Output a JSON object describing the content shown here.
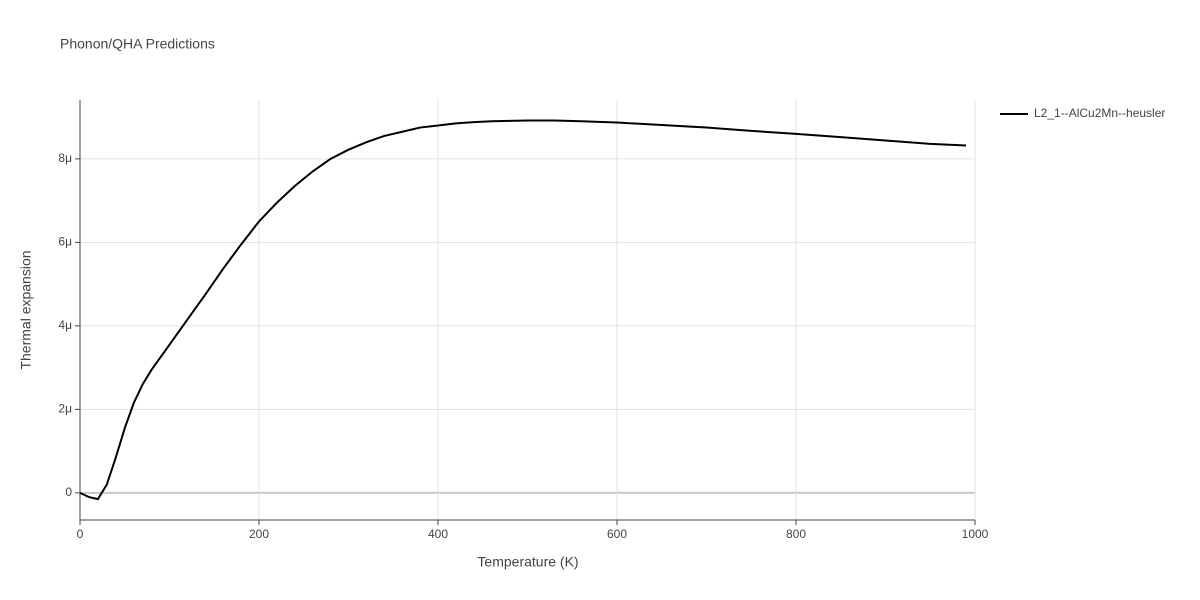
{
  "chart_data": {
    "type": "line",
    "title": "Phonon/QHA Predictions",
    "xlabel": "Temperature (K)",
    "ylabel": "Thermal expansion",
    "x": [
      0,
      10,
      20,
      30,
      40,
      50,
      60,
      70,
      80,
      100,
      120,
      140,
      160,
      180,
      200,
      220,
      240,
      260,
      280,
      300,
      320,
      340,
      360,
      380,
      400,
      420,
      440,
      460,
      480,
      500,
      530,
      560,
      600,
      650,
      700,
      750,
      800,
      850,
      900,
      950,
      990
    ],
    "series": [
      {
        "name": "L2_1--AlCu2Mn--heusler",
        "color": "#000000",
        "values": [
          0,
          -1e-07,
          -1.5e-07,
          2e-07,
          8.5e-07,
          1.55e-06,
          2.15e-06,
          2.6e-06,
          2.95e-06,
          3.55e-06,
          4.15e-06,
          4.75e-06,
          5.37e-06,
          5.95e-06,
          6.5e-06,
          6.95e-06,
          7.35e-06,
          7.7e-06,
          8e-06,
          8.22e-06,
          8.4e-06,
          8.55e-06,
          8.65e-06,
          8.75e-06,
          8.8e-06,
          8.85e-06,
          8.88e-06,
          8.9e-06,
          8.91e-06,
          8.92e-06,
          8.92e-06,
          8.9e-06,
          8.87e-06,
          8.81e-06,
          8.75e-06,
          8.67e-06,
          8.6e-06,
          8.52e-06,
          8.44e-06,
          8.36e-06,
          8.32e-06
        ]
      }
    ],
    "xlim": [
      0,
      1000
    ],
    "xticks": [
      0,
      200,
      400,
      600,
      800,
      1000
    ],
    "ylim": [
      -6.5e-07,
      9.41e-06
    ],
    "yticks": [
      0,
      {
        "value": 2e-06,
        "label": "2μ"
      },
      {
        "value": 4e-06,
        "label": "4μ"
      },
      {
        "value": 6e-06,
        "label": "6μ"
      },
      {
        "value": 8e-06,
        "label": "8μ"
      }
    ],
    "grid": true,
    "legend": "right"
  }
}
